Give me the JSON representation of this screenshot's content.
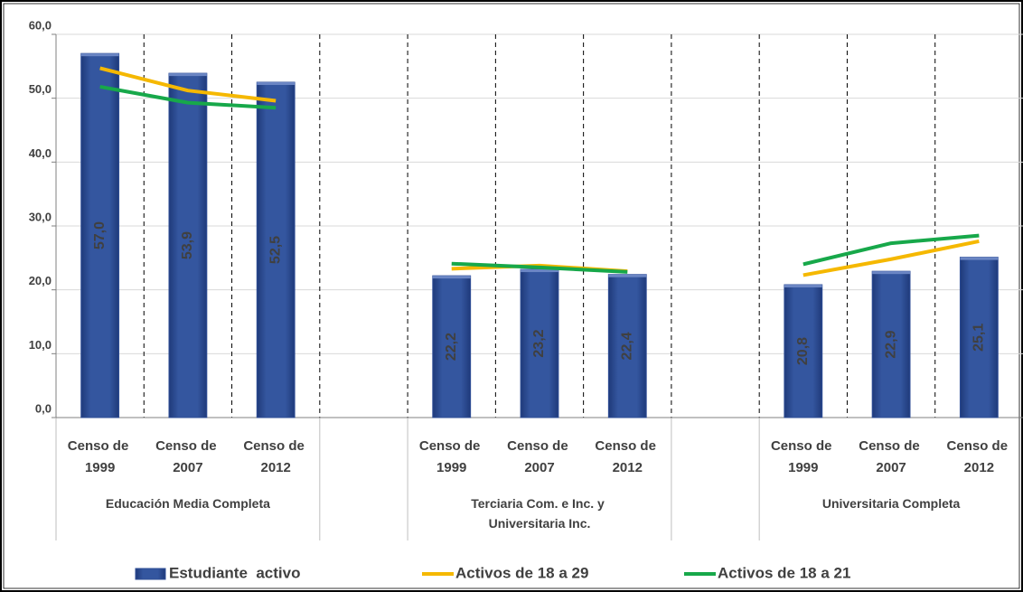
{
  "chart_data": {
    "type": "bar",
    "categories": [
      "Censo de 1999",
      "Censo de 2007",
      "Censo de 2012",
      null,
      "Censo de 1999",
      "Censo de 2007",
      "Censo de 2012",
      null,
      "Censo de 1999",
      "Censo de 2007",
      "Censo de 2012"
    ],
    "groups": [
      "Educación Media Completa",
      "Terciaria Com. e Inc. y Universitaria Inc.",
      "Universitaria Completa"
    ],
    "series": [
      {
        "name": "Estudiante  activo",
        "type": "bar",
        "color": "#2e4d96",
        "values": [
          57.0,
          53.9,
          52.5,
          null,
          22.2,
          23.2,
          22.4,
          null,
          20.8,
          22.9,
          25.1
        ],
        "value_labels": [
          "57,0",
          "53,9",
          "52,5",
          null,
          "22,2",
          "23,2",
          "22,4",
          null,
          "20,8",
          "22,9",
          "25,1"
        ]
      },
      {
        "name": "Activos de 18 a 29",
        "type": "line",
        "color": "#f5b800",
        "values": [
          54.7,
          51.2,
          49.6,
          null,
          23.3,
          23.8,
          22.9,
          null,
          22.3,
          24.8,
          27.6
        ]
      },
      {
        "name": "Activos de 18 a 21",
        "type": "line",
        "color": "#17a84a",
        "values": [
          51.8,
          49.3,
          48.5,
          null,
          24.1,
          23.5,
          22.8,
          null,
          24.0,
          27.3,
          28.5
        ]
      }
    ],
    "ylim": [
      0,
      60
    ],
    "yticks": [
      {
        "value": 0,
        "label": "0,0"
      },
      {
        "value": 10,
        "label": "10,0"
      },
      {
        "value": 20,
        "label": "20,0"
      },
      {
        "value": 30,
        "label": "30,0"
      },
      {
        "value": 40,
        "label": "40,0"
      },
      {
        "value": 50,
        "label": "50,0"
      },
      {
        "value": 60,
        "label": "60,0"
      }
    ],
    "grid": true
  }
}
